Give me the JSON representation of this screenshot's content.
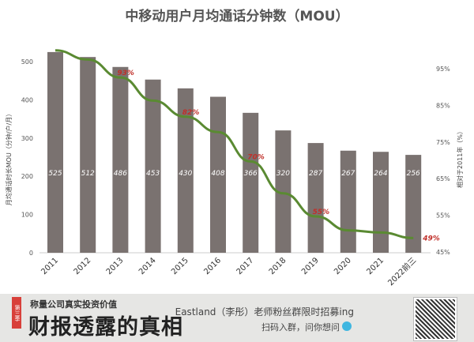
{
  "chart_data": {
    "type": "bar+line",
    "title": "中移动用户月均通话分钟数（MOU）",
    "ylabel": "月均通话时长MOU（分钟/户/月）",
    "y2label": "相对于2011年（%）",
    "categories": [
      "2011",
      "2012",
      "2013",
      "2014",
      "2015",
      "2016",
      "2017",
      "2018",
      "2019",
      "2020",
      "2021",
      "2022前三"
    ],
    "series": [
      {
        "name": "MOU",
        "type": "bar",
        "values": [
          525,
          512,
          486,
          453,
          430,
          408,
          366,
          320,
          287,
          267,
          264,
          256
        ],
        "color": "#7a7270"
      },
      {
        "name": "相对于2011年",
        "type": "line",
        "values": [
          100,
          97.5,
          92.6,
          86.3,
          81.9,
          77.7,
          69.7,
          61.0,
          54.7,
          50.9,
          50.3,
          48.8
        ],
        "color": "#5a8a32"
      }
    ],
    "line_labels": [
      {
        "index": 2,
        "text": "93%"
      },
      {
        "index": 4,
        "text": "82%"
      },
      {
        "index": 6,
        "text": "70%"
      },
      {
        "index": 8,
        "text": "55%"
      },
      {
        "index": 11,
        "text": "49%"
      }
    ],
    "ylim": [
      0,
      500
    ],
    "yticks": [
      "0",
      "100",
      "200",
      "300",
      "400",
      "500"
    ],
    "y2lim": [
      45,
      95
    ],
    "y2ticks": [
      "45%",
      "55%",
      "65%",
      "75%",
      "85%",
      "95%"
    ]
  },
  "banner": {
    "season": "第三季",
    "subtitle": "称量公司真实投资价值",
    "title": "财报透露的真相",
    "promo": "Eastland（李彤）老师粉丝群限时招募ing",
    "cta": "扫码入群，问你想问"
  }
}
